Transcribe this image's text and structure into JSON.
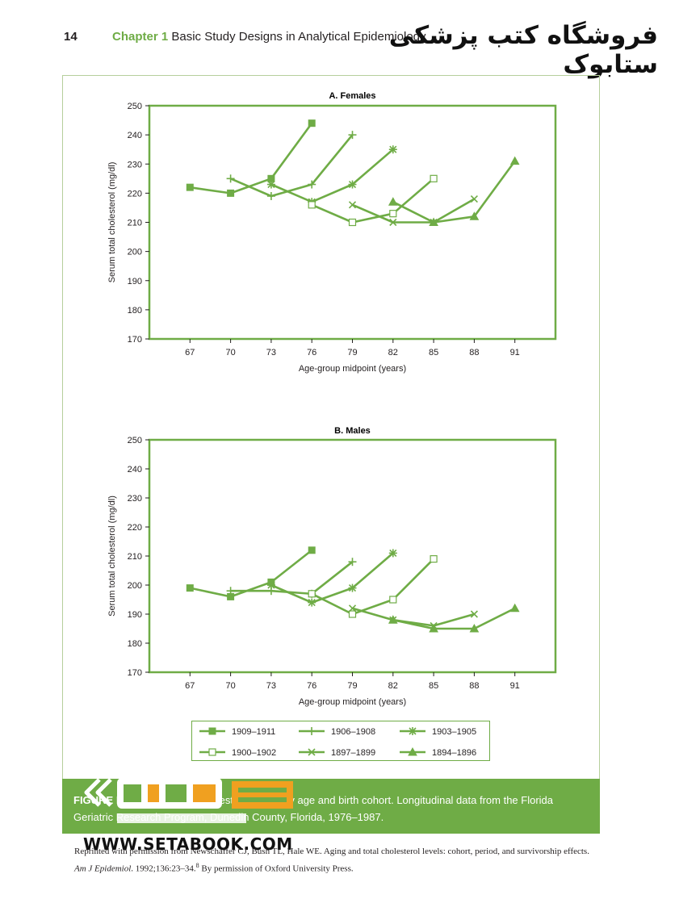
{
  "header": {
    "page_number": "14",
    "chapter_label": "Chapter 1",
    "chapter_title": "Basic Study Designs in Analytical Epidemiology",
    "watermark_title": "فروشگاه کتب پزشکی ستابوک"
  },
  "colors": {
    "accent": "#6fac46",
    "band": "#6fac46",
    "logo_orange": "#f0a020"
  },
  "chart_data": [
    {
      "type": "line",
      "title": "A. Females",
      "xlabel": "Age-group midpoint (years)",
      "ylabel": "Serum total cholesterol (mg/dl)",
      "x": [
        67,
        70,
        73,
        76,
        79,
        82,
        85,
        88,
        91
      ],
      "xlim": [
        64,
        94
      ],
      "ylim": [
        170,
        250
      ],
      "yticks": [
        170,
        180,
        190,
        200,
        210,
        220,
        230,
        240,
        250
      ],
      "grid": false,
      "series": [
        {
          "name": "1909–1911",
          "marker": "filled-square",
          "points": [
            [
              67,
              222
            ],
            [
              70,
              220
            ],
            [
              73,
              225
            ],
            [
              76,
              244
            ]
          ]
        },
        {
          "name": "1906–1908",
          "marker": "plus",
          "points": [
            [
              70,
              225
            ],
            [
              73,
              219
            ],
            [
              76,
              223
            ],
            [
              79,
              240
            ]
          ]
        },
        {
          "name": "1903–1905",
          "marker": "asterisk",
          "points": [
            [
              73,
              223
            ],
            [
              76,
              217
            ],
            [
              79,
              223
            ],
            [
              82,
              235
            ]
          ]
        },
        {
          "name": "1900–1902",
          "marker": "open-square",
          "points": [
            [
              76,
              216
            ],
            [
              79,
              210
            ],
            [
              82,
              213
            ],
            [
              85,
              225
            ]
          ]
        },
        {
          "name": "1897–1899",
          "marker": "x",
          "points": [
            [
              79,
              216
            ],
            [
              82,
              210
            ],
            [
              85,
              210
            ],
            [
              88,
              218
            ]
          ]
        },
        {
          "name": "1894–1896",
          "marker": "triangle",
          "points": [
            [
              82,
              217
            ],
            [
              85,
              210
            ],
            [
              88,
              212
            ],
            [
              91,
              231
            ]
          ]
        }
      ]
    },
    {
      "type": "line",
      "title": "B. Males",
      "xlabel": "Age-group midpoint (years)",
      "ylabel": "Serum total cholesterol (mg/dl)",
      "x": [
        67,
        70,
        73,
        76,
        79,
        82,
        85,
        88,
        91
      ],
      "xlim": [
        64,
        94
      ],
      "ylim": [
        170,
        250
      ],
      "yticks": [
        170,
        180,
        190,
        200,
        210,
        220,
        230,
        240,
        250
      ],
      "grid": false,
      "series": [
        {
          "name": "1909–1911",
          "marker": "filled-square",
          "points": [
            [
              67,
              199
            ],
            [
              70,
              196
            ],
            [
              73,
              201
            ],
            [
              76,
              212
            ]
          ]
        },
        {
          "name": "1906–1908",
          "marker": "plus",
          "points": [
            [
              70,
              198
            ],
            [
              73,
              198
            ],
            [
              76,
              197
            ],
            [
              79,
              208
            ]
          ]
        },
        {
          "name": "1903–1905",
          "marker": "asterisk",
          "points": [
            [
              73,
              200
            ],
            [
              76,
              194
            ],
            [
              79,
              199
            ],
            [
              82,
              211
            ]
          ]
        },
        {
          "name": "1900–1902",
          "marker": "open-square",
          "points": [
            [
              76,
              197
            ],
            [
              79,
              190
            ],
            [
              82,
              195
            ],
            [
              85,
              209
            ]
          ]
        },
        {
          "name": "1897–1899",
          "marker": "x",
          "points": [
            [
              79,
              192
            ],
            [
              82,
              188
            ],
            [
              85,
              186
            ],
            [
              88,
              190
            ]
          ]
        },
        {
          "name": "1894–1896",
          "marker": "triangle",
          "points": [
            [
              82,
              188
            ],
            [
              85,
              185
            ],
            [
              88,
              185
            ],
            [
              91,
              192
            ]
          ]
        }
      ]
    }
  ],
  "legend": {
    "placement": "bottom",
    "entries": [
      {
        "label": "1909–1911",
        "marker": "filled-square"
      },
      {
        "label": "1906–1908",
        "marker": "plus"
      },
      {
        "label": "1903–1905",
        "marker": "asterisk"
      },
      {
        "label": "1900–1902",
        "marker": "open-square"
      },
      {
        "label": "1897–1899",
        "marker": "x"
      },
      {
        "label": "1894–1896",
        "marker": "triangle"
      }
    ]
  },
  "caption": {
    "fig_label": "FIGURE",
    "text_start": "Mean serum total cholesterol levels by age and birth cohort. Longitudinal data from the Florida",
    "text_line2": "Geriatric Research Program, Dunedin County, Florida, 1976–1987."
  },
  "logo": {
    "brand_text": "WWW.SETABOOK.COM"
  },
  "source": {
    "line1": "Reprinted with permission from Newschaffer CJ, Bush TL, Hale WE. Aging and total cholesterol levels: cohort, period, and survivorship effects.",
    "journal": "Am J Epidemiol",
    "citation": ". 1992;136:23–34.",
    "ref_number": "8",
    "permission": " By permission of Oxford University Press."
  }
}
